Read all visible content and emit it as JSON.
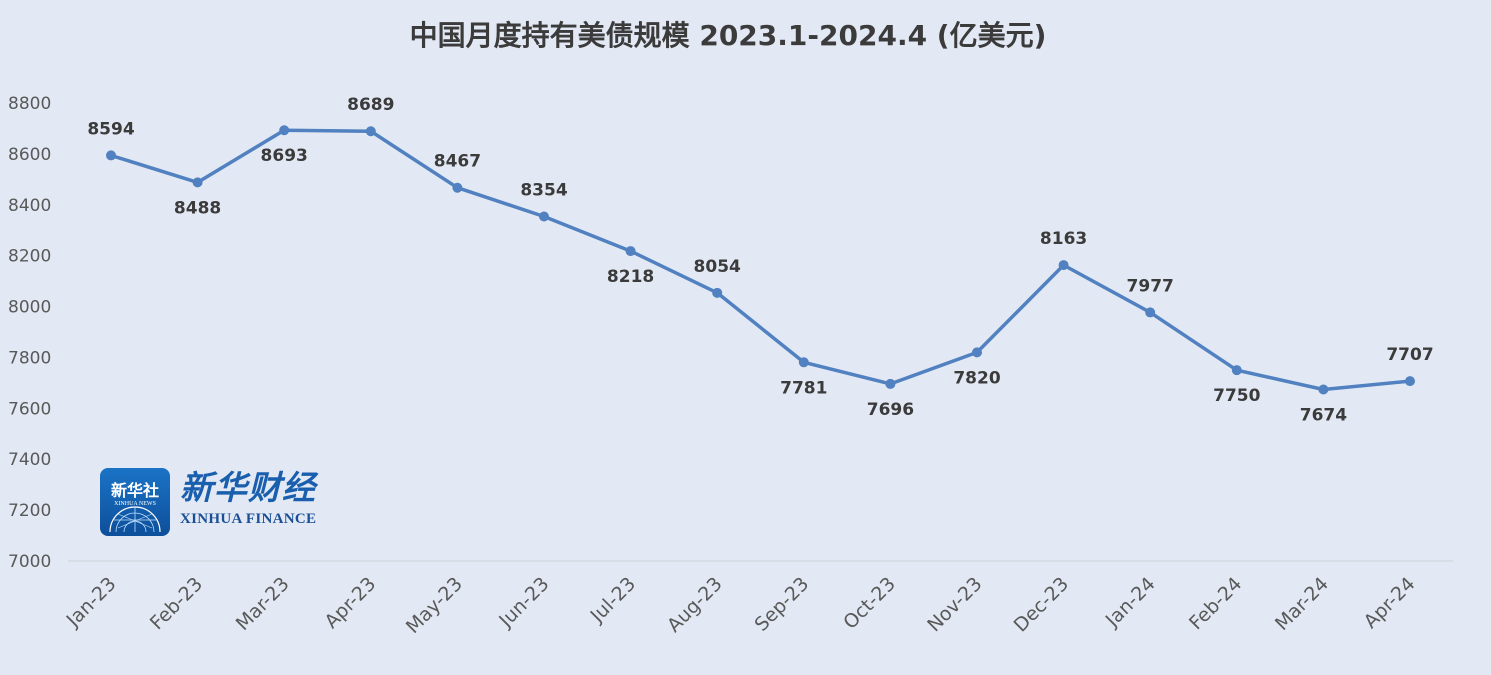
{
  "chart_data": {
    "type": "line",
    "title": "中国月度持有美债规模 2023.1-2024.4 (亿美元)",
    "categories": [
      "Jan-23",
      "Feb-23",
      "Mar-23",
      "Apr-23",
      "May-23",
      "Jun-23",
      "Jul-23",
      "Aug-23",
      "Sep-23",
      "Oct-23",
      "Nov-23",
      "Dec-23",
      "Jan-24",
      "Feb-24",
      "Mar-24",
      "Apr-24"
    ],
    "values": [
      8594,
      8488,
      8693,
      8689,
      8467,
      8354,
      8218,
      8054,
      7781,
      7696,
      7820,
      8163,
      7977,
      7750,
      7674,
      7707
    ],
    "data_label_position": [
      "above",
      "below",
      "below",
      "above",
      "above",
      "above",
      "below",
      "above",
      "below",
      "below",
      "below",
      "above",
      "above",
      "below",
      "below",
      "above"
    ],
    "ylim": [
      7000,
      8800
    ],
    "yticks": [
      7000,
      7200,
      7400,
      7600,
      7800,
      8000,
      8200,
      8400,
      8600,
      8800
    ],
    "grid": false,
    "legend": "none",
    "line_color": "#5181c0",
    "background_color": "#e3e9f4"
  },
  "logo": {
    "badge_cn": "新华社",
    "badge_en": "XINHUA NEWS",
    "name_cn": "新华财经",
    "name_en": "XINHUA FINANCE"
  }
}
